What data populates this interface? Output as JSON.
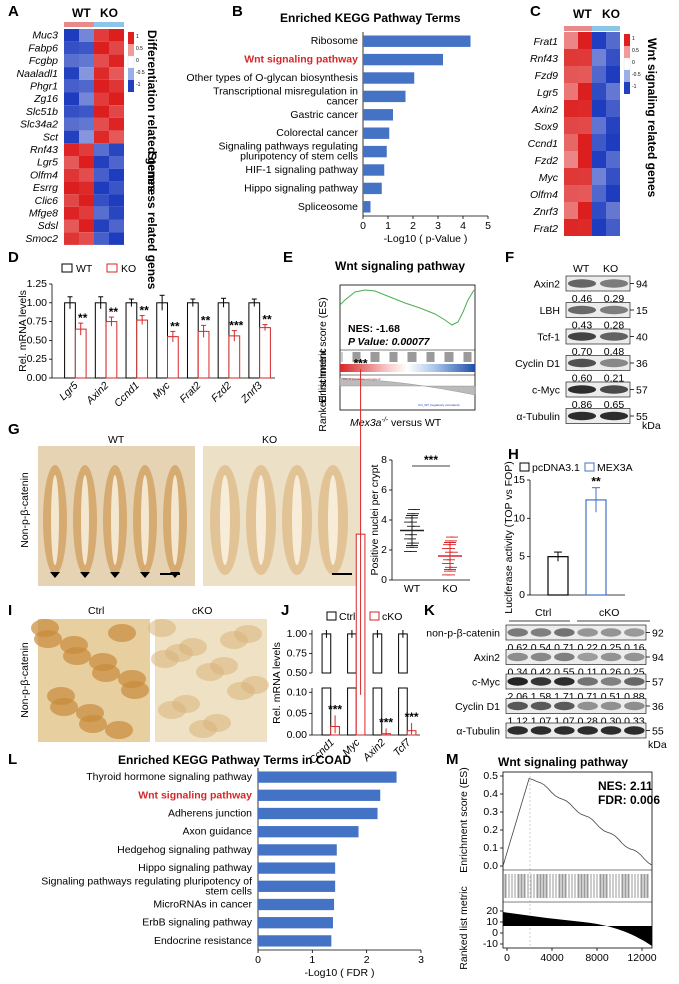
{
  "panel_letters": [
    "A",
    "B",
    "C",
    "D",
    "E",
    "F",
    "G",
    "H",
    "I",
    "J",
    "K",
    "L",
    "M"
  ],
  "panelA": {
    "col_labels": [
      "WT",
      "KO"
    ],
    "genes": [
      "Muc3",
      "Fabp6",
      "Fcgbp",
      "Naaladl1",
      "Phgr1",
      "Zg16",
      "Slc51b",
      "Slc34a2",
      "Sct",
      "Rnf43",
      "Lgr5",
      "Olfm4",
      "Esrrg",
      "Clic6",
      "Mfge8",
      "Sdsl",
      "Smoc2"
    ],
    "group_labels": [
      "Differentiation related genes",
      "Stemness related genes"
    ],
    "scale_ticks": [
      "1",
      "0.5",
      "0",
      "-0.5",
      "-1"
    ]
  },
  "panelC": {
    "col_labels": [
      "WT",
      "KO"
    ],
    "genes": [
      "Frat1",
      "Rnf43",
      "Fzd9",
      "Lgr5",
      "Axin2",
      "Sox9",
      "Ccnd1",
      "Fzd2",
      "Myc",
      "Olfm4",
      "Znrf3",
      "Frat2"
    ],
    "side_label": "Wnt signaling related genes",
    "scale_ticks": [
      "1",
      "0.5",
      "0",
      "-0.5",
      "-1"
    ]
  },
  "panelE": {
    "title": "Wnt  signaling pathway",
    "ylabel_top": "Enrichment score (ES)",
    "ylabel_bottom": "Ranked list metric",
    "nes": "NES: -1.68",
    "pval": "P Value: 0.00077",
    "xlabel": "Mex3a",
    "xlabel_sup": "-/-",
    "xlabel_suffix": " versus WT",
    "small_red": "KO_N (positively correlated)",
    "small_blue": "Ctrl_WT (negatively correlated)"
  },
  "panelF": {
    "col_labels": [
      "WT",
      "KO"
    ],
    "rows": [
      {
        "name": "Axin2",
        "mw": "94",
        "vals": [
          "0.46",
          "0.29"
        ]
      },
      {
        "name": "LBH",
        "mw": "15",
        "vals": [
          "0.43",
          "0.28"
        ]
      },
      {
        "name": "Tcf-1",
        "mw": "40",
        "vals": [
          "0.70",
          "0.48"
        ]
      },
      {
        "name": "Cyclin D1",
        "mw": "36",
        "vals": [
          "0.60",
          "0.21"
        ]
      },
      {
        "name": "c-Myc",
        "mw": "57",
        "vals": [
          "0.86",
          "0.65"
        ]
      },
      {
        "name": "α-Tubulin",
        "mw": "55",
        "vals": []
      }
    ],
    "unit": "kDa"
  },
  "panelG": {
    "wt_label": "WT",
    "ko_label": "KO",
    "side_label": "Non-p-β-catenin",
    "sig": "***"
  },
  "panelI": {
    "ctrl_label": "Ctrl",
    "cko_label": "cKO",
    "side_label": "Non-p-β-catenin"
  },
  "panelK": {
    "col_labels": [
      "Ctrl",
      "cKO"
    ],
    "rows": [
      {
        "name": "non-p-β-catenin",
        "mw": "92",
        "vals": [
          "0.62",
          "0.54",
          "0.71",
          "0.22",
          "0.25",
          "0.16"
        ]
      },
      {
        "name": "Axin2",
        "mw": "94",
        "vals": [
          "0.34",
          "0.42",
          "0.55",
          "0.11",
          "0.26",
          "0.25"
        ]
      },
      {
        "name": "c-Myc",
        "mw": "57",
        "vals": [
          "2.06",
          "1.58",
          "1.71",
          "0.71",
          "0.51",
          "0.88"
        ]
      },
      {
        "name": "Cyclin D1",
        "mw": "36",
        "vals": [
          "1.12",
          "1.07",
          "1.07",
          "0.28",
          "0.30",
          "0.33"
        ]
      },
      {
        "name": "α-Tubulin",
        "mw": "55",
        "vals": []
      }
    ],
    "unit": "kDa"
  },
  "chart_data": [
    {
      "panel": "B",
      "type": "bar",
      "title": "Enriched KEGG Pathway Terms",
      "xlabel": "-Log10 ( p-Value )",
      "xlim": [
        0,
        5
      ],
      "xticks": [
        "0",
        "1",
        "2",
        "3",
        "4",
        "5"
      ],
      "categories": [
        "Ribosome",
        "Wnt signaling pathway",
        "Other types of O-glycan biosynthesis",
        "Transcriptional misregulation in cancer",
        "Gastric cancer",
        "Colorectal cancer",
        "Signaling pathways regulating pluripotency of stem cells",
        "HIF-1 signaling pathway",
        "Hippo signaling pathway",
        "Spliceosome"
      ],
      "values": [
        4.3,
        3.2,
        2.05,
        1.7,
        1.2,
        1.05,
        0.95,
        0.85,
        0.75,
        0.3
      ],
      "highlight_index": 1,
      "bar_color": "#4472c4",
      "highlight_color": "#d62728"
    },
    {
      "panel": "D",
      "type": "bar",
      "ylabel": "Rel. mRNA levels",
      "ylim": [
        0,
        1.25
      ],
      "yticks": [
        "0.00",
        "0.25",
        "0.50",
        "0.75",
        "1.00",
        "1.25"
      ],
      "legend": [
        "WT",
        "KO"
      ],
      "categories": [
        "Lgr5",
        "Axin2",
        "Ccnd1",
        "Myc",
        "Frat2",
        "Fzd2",
        "Znrf3"
      ],
      "series": [
        {
          "name": "WT",
          "values": [
            1.0,
            1.0,
            1.0,
            1.0,
            1.0,
            1.0,
            1.0
          ],
          "errors": [
            0.08,
            0.08,
            0.05,
            0.1,
            0.05,
            0.06,
            0.05
          ]
        },
        {
          "name": "KO",
          "values": [
            0.65,
            0.75,
            0.77,
            0.55,
            0.62,
            0.56,
            0.67
          ],
          "errors": [
            0.08,
            0.06,
            0.06,
            0.07,
            0.08,
            0.07,
            0.04
          ]
        }
      ],
      "sig": [
        "**",
        "**",
        "**",
        "**",
        "**",
        "***",
        "**"
      ],
      "wt_color": "#000000",
      "ko_color": "#d62728"
    },
    {
      "panel": "G",
      "type": "scatter",
      "ylabel": "Positive nuclei per crypt",
      "ylim": [
        0,
        8
      ],
      "yticks": [
        "0",
        "2",
        "4",
        "6",
        "8"
      ],
      "categories": [
        "WT",
        "KO"
      ],
      "means": [
        3.3,
        1.6
      ],
      "sd": [
        1.0,
        0.9
      ],
      "colors": [
        "#222222",
        "#d62728"
      ]
    },
    {
      "panel": "H",
      "type": "bar",
      "ylabel": "Luciferase activity (TOP vs FOP)",
      "ylim": [
        0,
        15
      ],
      "yticks": [
        "0",
        "5",
        "10",
        "15"
      ],
      "legend": [
        "pcDNA3.1",
        "MEX3A"
      ],
      "categories": [
        "pcDNA3.1",
        "MEX3A"
      ],
      "values": [
        5.0,
        12.4
      ],
      "errors": [
        0.6,
        1.6
      ],
      "sig": [
        "",
        "**"
      ],
      "colors": [
        "#000000",
        "#4472c4"
      ]
    },
    {
      "panel": "J",
      "type": "bar",
      "ylabel": "Rel. mRNA levels",
      "legend": [
        "Ctrl",
        "cKO"
      ],
      "categories": [
        "Ccnd1",
        "Myc",
        "Axin2",
        "Tcf7"
      ],
      "yticks_upper": [
        "0.50",
        "0.75",
        "1.00"
      ],
      "yticks_lower": [
        "0.00",
        "0.05",
        "0.10"
      ],
      "series": [
        {
          "name": "Ctrl",
          "values": [
            1.0,
            1.0,
            1.0,
            1.0
          ]
        },
        {
          "name": "cKO",
          "values": [
            0.02,
            0.47,
            0.003,
            0.01
          ]
        }
      ],
      "sig": [
        "***",
        "***",
        "***",
        "***"
      ]
    },
    {
      "panel": "L",
      "type": "bar",
      "title": "Enriched KEGG Pathway Terms in COAD",
      "xlabel": "-Log10 ( FDR )",
      "xlim": [
        0,
        3
      ],
      "xticks": [
        "0",
        "1",
        "2",
        "3"
      ],
      "categories": [
        "Thyroid hormone signaling pathway",
        "Wnt signaling pathway",
        "Adherens junction",
        "Axon guidance",
        "Hedgehog signaling pathway",
        "Hippo signaling pathway",
        "Signaling pathways regulating pluripotency of stem cells",
        "MicroRNAs in cancer",
        "ErbB signaling pathway",
        "Endocrine resistance"
      ],
      "values": [
        2.55,
        2.25,
        2.2,
        1.85,
        1.45,
        1.42,
        1.42,
        1.4,
        1.38,
        1.35
      ],
      "highlight_index": 1
    },
    {
      "panel": "M",
      "type": "line",
      "title": "Wnt  signaling pathway",
      "ylabel_top": "Enrichment score (ES)",
      "ylabel_bottom": "Ranked list metric",
      "nes": "NES: 2.11",
      "fdr": "FDR: 0.006",
      "xticks": [
        "0",
        "4000",
        "8000",
        "12000"
      ],
      "yticks_top": [
        "0.0",
        "0.1",
        "0.2",
        "0.3",
        "0.4",
        "0.5"
      ],
      "yticks_bottom": [
        "-10",
        "0",
        "10",
        "20"
      ]
    }
  ]
}
